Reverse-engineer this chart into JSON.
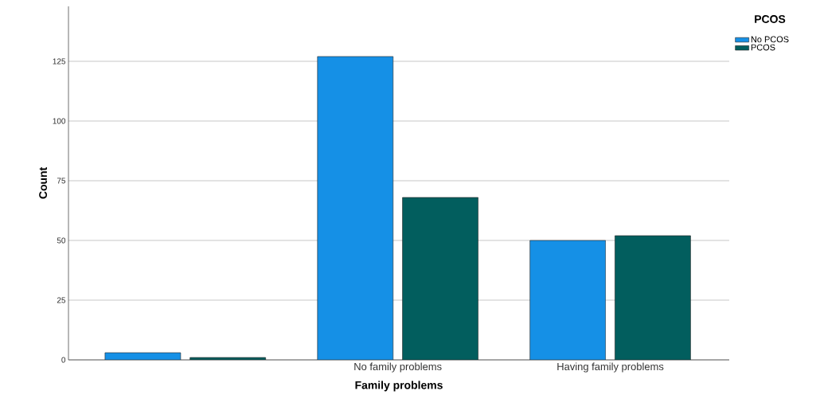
{
  "chart_data": {
    "type": "bar",
    "xlabel": "Family problems",
    "ylabel": "Count",
    "legend_title": "PCOS",
    "categories": [
      null,
      "No family problems",
      "Having family problems"
    ],
    "series": [
      {
        "name": "No PCOS",
        "color": "#1590e6",
        "values": [
          3,
          127,
          50
        ]
      },
      {
        "name": "PCOS",
        "color": "#025e5e",
        "values": [
          1,
          68,
          52
        ]
      }
    ],
    "ylim": [
      0,
      148
    ],
    "yticks": [
      0,
      25,
      50,
      75,
      100,
      125
    ],
    "grid": "y",
    "legend": "top right"
  }
}
